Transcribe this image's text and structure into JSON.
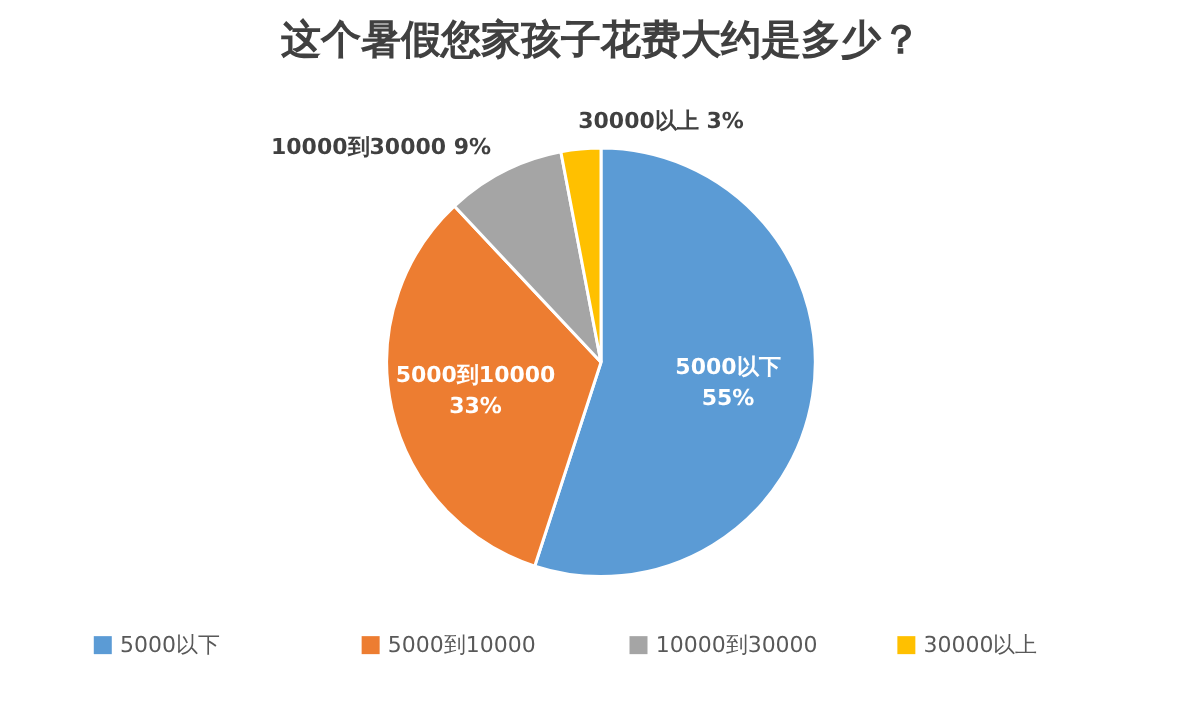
{
  "chart_data": {
    "type": "pie",
    "title": "这个暑假您家孩子花费大约是多少？",
    "categories": [
      "5000以下",
      "5000到10000",
      "10000到30000",
      "30000以上"
    ],
    "values": [
      55,
      33,
      9,
      3
    ],
    "value_labels": [
      "55%",
      "33%",
      "9%",
      "3%"
    ],
    "colors": [
      "#5b9bd5",
      "#ed7d31",
      "#a5a5a5",
      "#ffc000"
    ],
    "legend": "bottom"
  }
}
